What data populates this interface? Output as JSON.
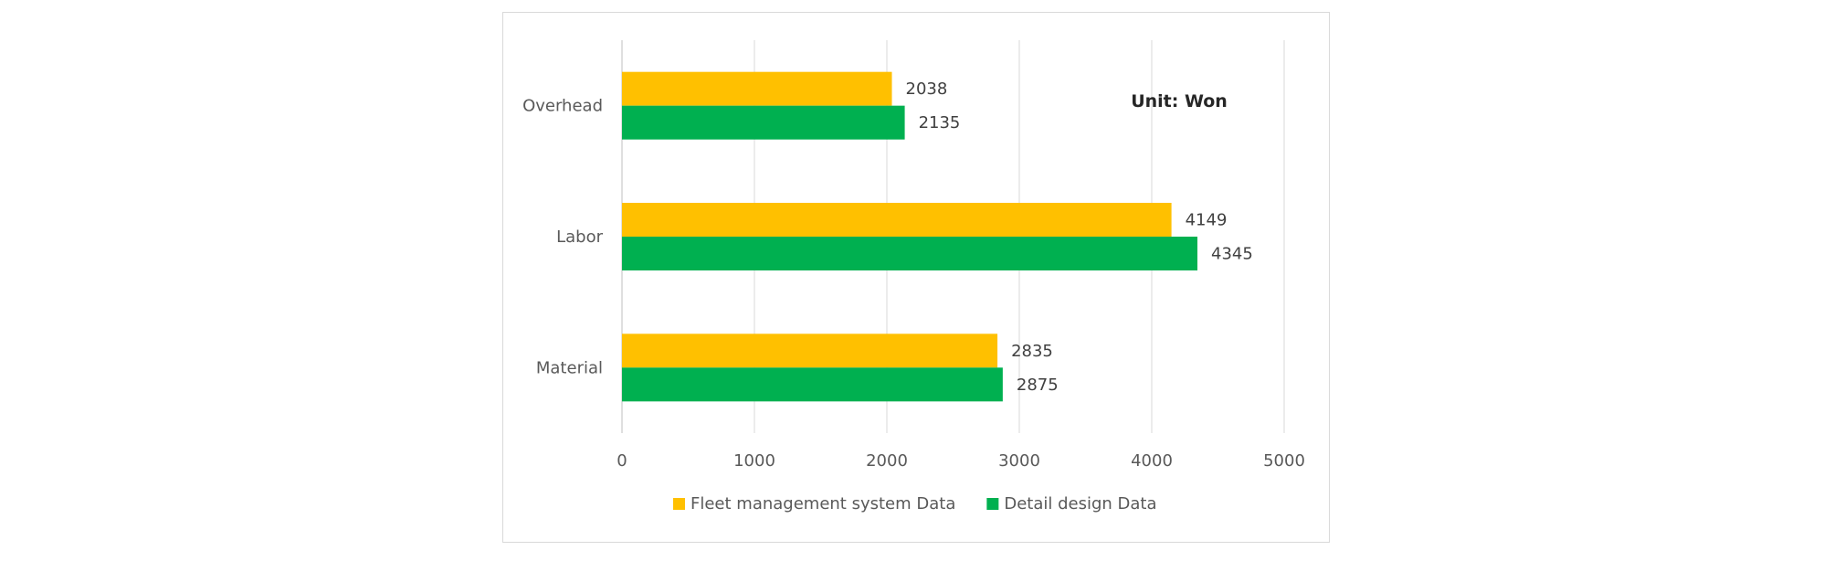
{
  "chart_data": {
    "type": "bar",
    "orientation": "horizontal",
    "categories": [
      "Overhead",
      "Labor",
      "Material"
    ],
    "series": [
      {
        "name": "Fleet management system Data",
        "values": [
          2038,
          4149,
          2835
        ],
        "color": "#FFC000"
      },
      {
        "name": "Detail design Data",
        "values": [
          2135,
          4345,
          2875
        ],
        "color": "#00B050"
      }
    ],
    "xlim": [
      0,
      5000
    ],
    "x_ticks": [
      0,
      1000,
      2000,
      3000,
      4000,
      5000
    ],
    "annotation": "Unit: Won",
    "grid": "vertical",
    "legend_position": "bottom",
    "data_labels": true
  }
}
